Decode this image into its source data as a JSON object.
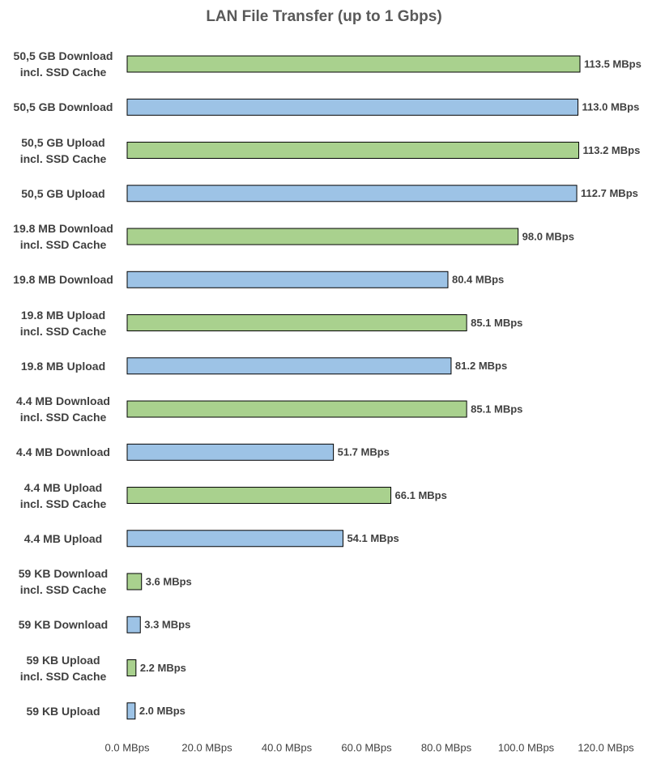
{
  "chart_data": {
    "type": "hbar",
    "title": "LAN File Transfer (up to 1 Gbps)",
    "categories": [
      "50,5 GB Download\nincl. SSD Cache",
      "50,5 GB Download",
      "50,5 GB Upload\nincl. SSD Cache",
      "50,5 GB Upload",
      "19.8 MB Download\nincl. SSD Cache",
      "19.8 MB Download",
      "19.8 MB Upload\nincl. SSD Cache",
      "19.8 MB Upload",
      "4.4 MB Download\nincl. SSD Cache",
      "4.4 MB Download",
      "4.4 MB Upload\nincl. SSD Cache",
      "4.4 MB Upload",
      "59 KB Download\nincl. SSD Cache",
      "59 KB Download",
      "59 KB Upload\nincl. SSD Cache",
      "59 KB Upload"
    ],
    "values": [
      113.5,
      113.0,
      113.2,
      112.7,
      98.0,
      80.4,
      85.1,
      81.2,
      85.1,
      51.7,
      66.1,
      54.1,
      3.6,
      3.3,
      2.2,
      2.0
    ],
    "value_labels": [
      "113.5 MBps",
      "113.0 MBps",
      "113.2 MBps",
      "112.7 MBps",
      "98.0 MBps",
      "80.4 MBps",
      "85.1 MBps",
      "81.2 MBps",
      "85.1 MBps",
      "51.7 MBps",
      "66.1 MBps",
      "54.1 MBps",
      "3.6 MBps",
      "3.3 MBps",
      "2.2 MBps",
      "2.0 MBps"
    ],
    "colors": [
      "#a9d18e",
      "#9dc3e6",
      "#a9d18e",
      "#9dc3e6",
      "#a9d18e",
      "#9dc3e6",
      "#a9d18e",
      "#9dc3e6",
      "#a9d18e",
      "#9dc3e6",
      "#a9d18e",
      "#9dc3e6",
      "#a9d18e",
      "#9dc3e6",
      "#a9d18e",
      "#9dc3e6"
    ],
    "xlim": [
      0,
      120
    ],
    "xticks": [
      {
        "value": 0,
        "label": "0.0 MBps"
      },
      {
        "value": 20,
        "label": "20.0 MBps"
      },
      {
        "value": 40,
        "label": "40.0 MBps"
      },
      {
        "value": 60,
        "label": "60.0 MBps"
      },
      {
        "value": 80,
        "label": "80.0 MBps"
      },
      {
        "value": 100,
        "label": "100.0 MBps"
      },
      {
        "value": 120,
        "label": "120.0 MBps"
      }
    ],
    "grid": false
  }
}
